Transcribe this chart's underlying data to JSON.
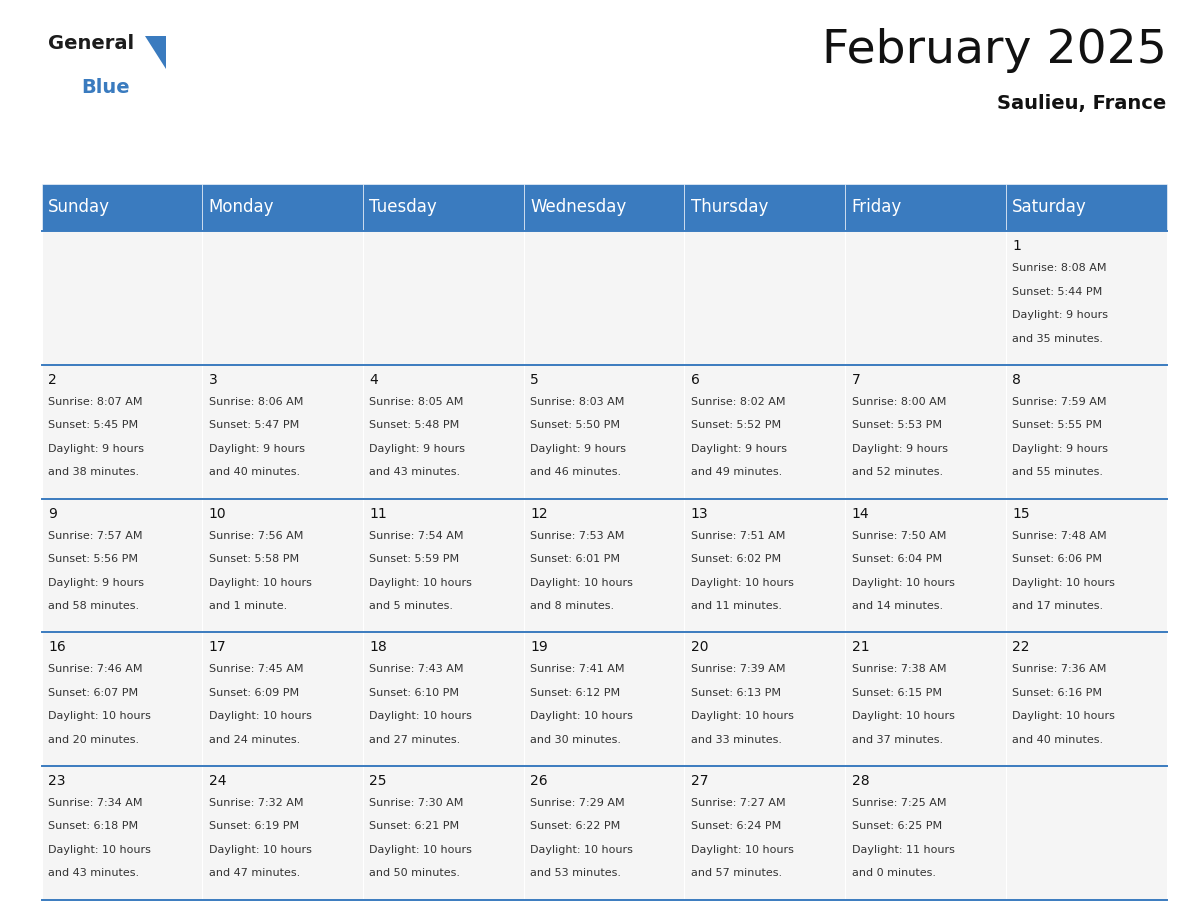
{
  "title": "February 2025",
  "subtitle": "Saulieu, France",
  "header_color": "#3a7bbf",
  "header_text_color": "#ffffff",
  "background_color": "#ffffff",
  "cell_bg_color": "#f5f5f5",
  "border_color": "#3a7bbf",
  "days_of_week": [
    "Sunday",
    "Monday",
    "Tuesday",
    "Wednesday",
    "Thursday",
    "Friday",
    "Saturday"
  ],
  "title_fontsize": 34,
  "subtitle_fontsize": 14,
  "header_fontsize": 12,
  "day_num_fontsize": 10,
  "info_fontsize": 8.0,
  "calendar": [
    [
      null,
      null,
      null,
      null,
      null,
      null,
      {
        "day": 1,
        "sunrise": "8:08 AM",
        "sunset": "5:44 PM",
        "daylight": "9 hours and 35 minutes."
      }
    ],
    [
      {
        "day": 2,
        "sunrise": "8:07 AM",
        "sunset": "5:45 PM",
        "daylight": "9 hours and 38 minutes."
      },
      {
        "day": 3,
        "sunrise": "8:06 AM",
        "sunset": "5:47 PM",
        "daylight": "9 hours and 40 minutes."
      },
      {
        "day": 4,
        "sunrise": "8:05 AM",
        "sunset": "5:48 PM",
        "daylight": "9 hours and 43 minutes."
      },
      {
        "day": 5,
        "sunrise": "8:03 AM",
        "sunset": "5:50 PM",
        "daylight": "9 hours and 46 minutes."
      },
      {
        "day": 6,
        "sunrise": "8:02 AM",
        "sunset": "5:52 PM",
        "daylight": "9 hours and 49 minutes."
      },
      {
        "day": 7,
        "sunrise": "8:00 AM",
        "sunset": "5:53 PM",
        "daylight": "9 hours and 52 minutes."
      },
      {
        "day": 8,
        "sunrise": "7:59 AM",
        "sunset": "5:55 PM",
        "daylight": "9 hours and 55 minutes."
      }
    ],
    [
      {
        "day": 9,
        "sunrise": "7:57 AM",
        "sunset": "5:56 PM",
        "daylight": "9 hours and 58 minutes."
      },
      {
        "day": 10,
        "sunrise": "7:56 AM",
        "sunset": "5:58 PM",
        "daylight": "10 hours and 1 minute."
      },
      {
        "day": 11,
        "sunrise": "7:54 AM",
        "sunset": "5:59 PM",
        "daylight": "10 hours and 5 minutes."
      },
      {
        "day": 12,
        "sunrise": "7:53 AM",
        "sunset": "6:01 PM",
        "daylight": "10 hours and 8 minutes."
      },
      {
        "day": 13,
        "sunrise": "7:51 AM",
        "sunset": "6:02 PM",
        "daylight": "10 hours and 11 minutes."
      },
      {
        "day": 14,
        "sunrise": "7:50 AM",
        "sunset": "6:04 PM",
        "daylight": "10 hours and 14 minutes."
      },
      {
        "day": 15,
        "sunrise": "7:48 AM",
        "sunset": "6:06 PM",
        "daylight": "10 hours and 17 minutes."
      }
    ],
    [
      {
        "day": 16,
        "sunrise": "7:46 AM",
        "sunset": "6:07 PM",
        "daylight": "10 hours and 20 minutes."
      },
      {
        "day": 17,
        "sunrise": "7:45 AM",
        "sunset": "6:09 PM",
        "daylight": "10 hours and 24 minutes."
      },
      {
        "day": 18,
        "sunrise": "7:43 AM",
        "sunset": "6:10 PM",
        "daylight": "10 hours and 27 minutes."
      },
      {
        "day": 19,
        "sunrise": "7:41 AM",
        "sunset": "6:12 PM",
        "daylight": "10 hours and 30 minutes."
      },
      {
        "day": 20,
        "sunrise": "7:39 AM",
        "sunset": "6:13 PM",
        "daylight": "10 hours and 33 minutes."
      },
      {
        "day": 21,
        "sunrise": "7:38 AM",
        "sunset": "6:15 PM",
        "daylight": "10 hours and 37 minutes."
      },
      {
        "day": 22,
        "sunrise": "7:36 AM",
        "sunset": "6:16 PM",
        "daylight": "10 hours and 40 minutes."
      }
    ],
    [
      {
        "day": 23,
        "sunrise": "7:34 AM",
        "sunset": "6:18 PM",
        "daylight": "10 hours and 43 minutes."
      },
      {
        "day": 24,
        "sunrise": "7:32 AM",
        "sunset": "6:19 PM",
        "daylight": "10 hours and 47 minutes."
      },
      {
        "day": 25,
        "sunrise": "7:30 AM",
        "sunset": "6:21 PM",
        "daylight": "10 hours and 50 minutes."
      },
      {
        "day": 26,
        "sunrise": "7:29 AM",
        "sunset": "6:22 PM",
        "daylight": "10 hours and 53 minutes."
      },
      {
        "day": 27,
        "sunrise": "7:27 AM",
        "sunset": "6:24 PM",
        "daylight": "10 hours and 57 minutes."
      },
      {
        "day": 28,
        "sunrise": "7:25 AM",
        "sunset": "6:25 PM",
        "daylight": "11 hours and 0 minutes."
      },
      null
    ]
  ]
}
